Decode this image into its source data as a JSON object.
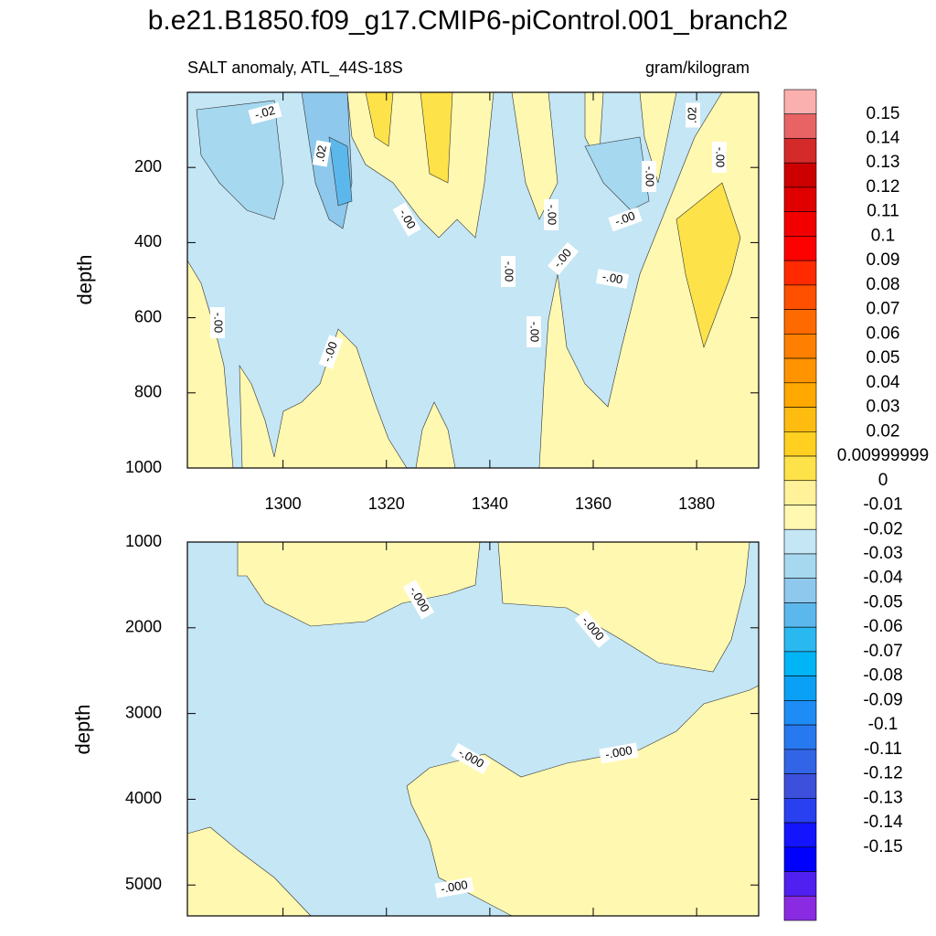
{
  "chart_data": [
    {
      "type": "contour",
      "title": "b.e21.B1850.f09_g17.CMIP6-piControl.001_branch2",
      "subtitle_left": "SALT anomaly, ATL_44S-18S",
      "subtitle_right": "gram/kilogram",
      "y_label": "depth",
      "xlim": [
        1281.5,
        1392
      ],
      "xticks": [
        1300,
        1320,
        1340,
        1360,
        1380
      ],
      "ylim": [
        0,
        1000
      ],
      "yticks": [
        200,
        400,
        600,
        800,
        1000
      ],
      "y_reversed": true,
      "annotations": [
        "-.02",
        ".02",
        "-.00",
        "-.00",
        "-.00",
        "-.00",
        "-.00",
        "-.00",
        "-.00",
        "-.00",
        ".02",
        "-.00",
        "-.00",
        "-.00"
      ],
      "colorbar": {
        "levels": [
          0.15,
          0.14,
          0.13,
          0.12,
          0.11,
          0.1,
          0.09,
          0.08,
          0.07,
          0.06,
          0.05,
          0.04,
          0.03,
          0.02,
          0.00999999,
          0,
          -0.01,
          -0.02,
          -0.03,
          -0.04,
          -0.05,
          -0.06,
          -0.07,
          -0.08,
          -0.09,
          -0.1,
          -0.11,
          -0.12,
          -0.13,
          -0.14,
          -0.15
        ],
        "colors": [
          "#fbb0b0",
          "#e86464",
          "#d42a2a",
          "#cc0000",
          "#e00000",
          "#f20000",
          "#ff0000",
          "#ff2a00",
          "#ff5000",
          "#ff6a00",
          "#ff7f00",
          "#ff9400",
          "#ffa800",
          "#ffbc10",
          "#ffd020",
          "#fde24a",
          "#fff29a",
          "#fff8b0",
          "#c4e6f5",
          "#a6d8f0",
          "#8ec8ec",
          "#5cb8ec",
          "#2ab8f0",
          "#00b4f5",
          "#0aa0f5",
          "#1e8cf5",
          "#2878f0",
          "#3264e6",
          "#3c50dc",
          "#2840f0",
          "#1414ff",
          "#0000ff",
          "#5020f0",
          "#8a2be2"
        ]
      }
    },
    {
      "type": "contour",
      "y_label": "depth",
      "xlim": [
        1281.5,
        1392
      ],
      "xticks": [
        1300,
        1320,
        1340,
        1360,
        1380
      ],
      "ylim": [
        1000,
        5360
      ],
      "yticks": [
        1000,
        2000,
        3000,
        4000,
        5000
      ],
      "y_reversed": true,
      "annotations": [
        "-.000",
        "-.000",
        "-.000",
        "-.000",
        "-.000"
      ]
    }
  ]
}
